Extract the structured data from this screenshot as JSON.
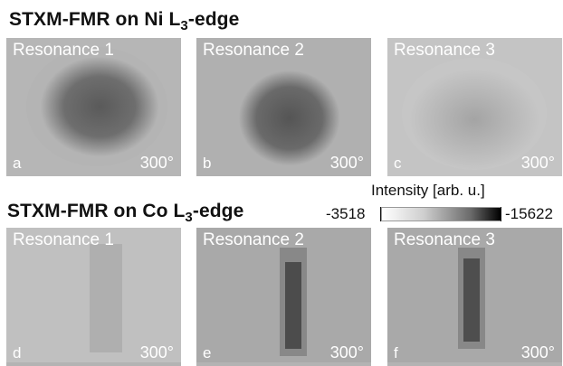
{
  "headings": {
    "ni": {
      "main": "STXM-FMR on Ni L",
      "sub": "3",
      "suffix": "-edge"
    },
    "co": {
      "main": "STXM-FMR on Co L",
      "sub": "3",
      "suffix": "-edge"
    }
  },
  "panels": [
    {
      "title": "Resonance 1",
      "letter": "a",
      "temp": "300°"
    },
    {
      "title": "Resonance 2",
      "letter": "b",
      "temp": "300°"
    },
    {
      "title": "Resonance 3",
      "letter": "c",
      "temp": "300°"
    },
    {
      "title": "Resonance 1",
      "letter": "d",
      "temp": "300°"
    },
    {
      "title": "Resonance 2",
      "letter": "e",
      "temp": "300°"
    },
    {
      "title": "Resonance 3",
      "letter": "f",
      "temp": "300°"
    }
  ],
  "colorbar": {
    "title": "Intensity [arb. u.]",
    "min_label": "-3518",
    "max_label": "-15622",
    "low_color": "#ffffff",
    "high_color": "#000000"
  }
}
